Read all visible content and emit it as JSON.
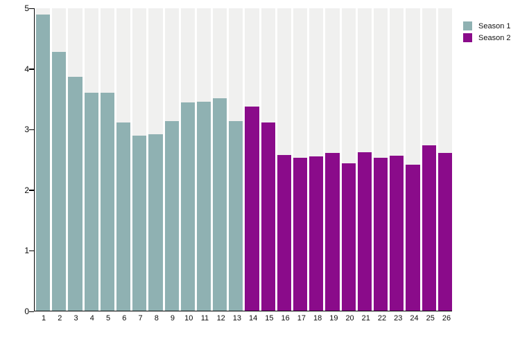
{
  "chart_data": {
    "type": "bar",
    "title": "",
    "xlabel": "",
    "ylabel": "",
    "ylim": [
      0,
      5
    ],
    "yticks": [
      0,
      1,
      2,
      3,
      4,
      5
    ],
    "categories": [
      "1",
      "2",
      "3",
      "4",
      "5",
      "6",
      "7",
      "8",
      "9",
      "10",
      "11",
      "12",
      "13",
      "14",
      "15",
      "16",
      "17",
      "18",
      "19",
      "20",
      "21",
      "22",
      "23",
      "24",
      "25",
      "26"
    ],
    "series": [
      {
        "name": "Season 1",
        "color": "#8fb1b2",
        "x": [
          1,
          2,
          3,
          4,
          5,
          6,
          7,
          8,
          9,
          10,
          11,
          12,
          13
        ],
        "values": [
          4.9,
          4.28,
          3.87,
          3.61,
          3.61,
          3.11,
          2.9,
          2.92,
          3.13,
          3.44,
          3.46,
          3.51,
          3.13
        ]
      },
      {
        "name": "Season 2",
        "color": "#8a0b8a",
        "x": [
          14,
          15,
          16,
          17,
          18,
          19,
          20,
          21,
          22,
          23,
          24,
          25,
          26
        ],
        "values": [
          3.37,
          3.11,
          2.57,
          2.53,
          2.55,
          2.61,
          2.44,
          2.62,
          2.53,
          2.56,
          2.42,
          2.74,
          2.61
        ]
      }
    ],
    "grid": false,
    "background_band_color": "#f0f0ef",
    "legend_position": "top-right"
  },
  "legend": {
    "items": [
      {
        "label": "Season 1",
        "color": "#8fb1b2"
      },
      {
        "label": "Season 2",
        "color": "#8a0b8a"
      }
    ]
  }
}
